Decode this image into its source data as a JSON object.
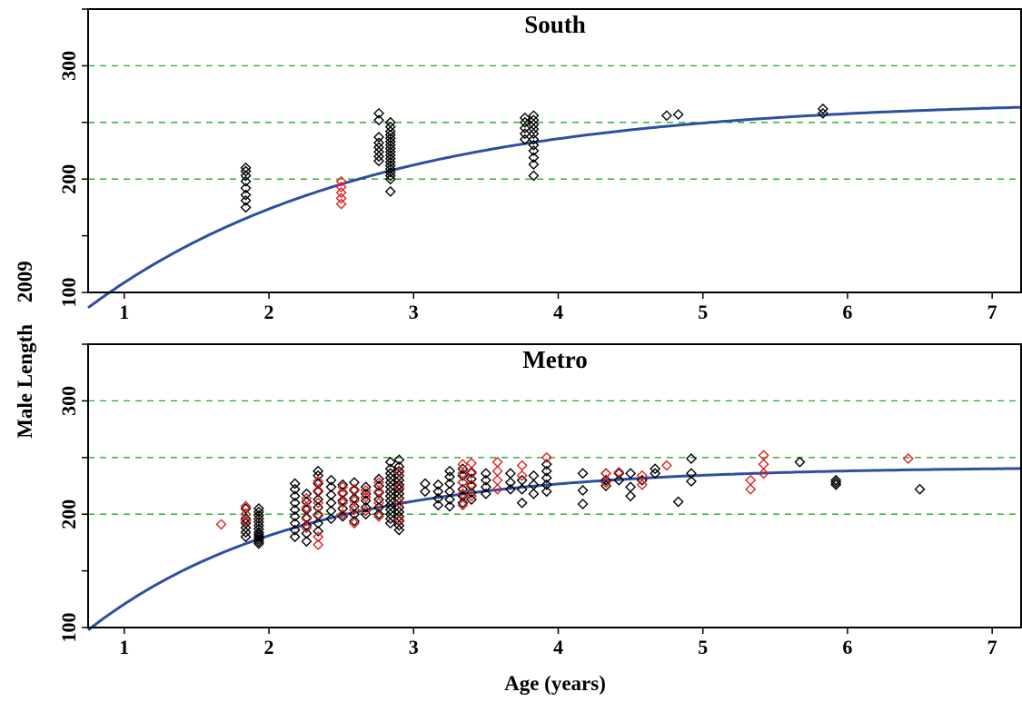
{
  "chart_data": {
    "type": "scatter",
    "xlabel": "Age (years)",
    "ylabel": "Male Length",
    "ylabel_year": "2009",
    "xlim": [
      0.75,
      7.2
    ],
    "ylim": [
      100,
      350
    ],
    "xticks": [
      1,
      2,
      3,
      4,
      5,
      6,
      7
    ],
    "yticks": [
      100,
      200,
      300
    ],
    "grid_y": [
      200,
      250,
      300
    ],
    "colors": {
      "fit": "#2e4ea0",
      "grid": "#22aa22",
      "obs_black": "#000000",
      "obs_red": "#dd2222",
      "axis": "#000000"
    },
    "panels": [
      {
        "title": "South",
        "fit_curve": {
          "model": "von Bertalanffy",
          "Linf": 270,
          "K": 0.515,
          "t0": 0
        },
        "clusters": [
          {
            "age": 1.84,
            "color": "black",
            "values": [
              175,
              181,
              186,
              192,
              198,
              203,
              207,
              210
            ]
          },
          {
            "age": 2.5,
            "color": "red",
            "values": [
              178,
              183,
              188,
              193,
              198
            ]
          },
          {
            "age": 2.76,
            "color": "black",
            "values": [
              216,
              220,
              224,
              228,
              232,
              237,
              252,
              258
            ]
          },
          {
            "age": 2.84,
            "color": "black",
            "values": [
              189,
              200,
              203,
              206,
              209,
              212,
              215,
              218,
              221,
              224,
              227,
              230,
              233,
              236,
              239,
              242,
              246,
              250
            ]
          },
          {
            "age": 3.77,
            "color": "black",
            "values": [
              235,
              240,
              245,
              250,
              254
            ]
          },
          {
            "age": 3.83,
            "color": "black",
            "values": [
              203,
              213,
              219,
              225,
              230,
              235,
              240,
              244,
              248,
              252,
              256
            ]
          },
          {
            "age": 4.75,
            "color": "black",
            "values": [
              256
            ]
          },
          {
            "age": 4.83,
            "color": "black",
            "values": [
              257
            ]
          },
          {
            "age": 5.83,
            "color": "black",
            "values": [
              258,
              262
            ]
          }
        ]
      },
      {
        "title": "Metro",
        "fit_curve": {
          "model": "von Bertalanffy",
          "Linf": 242,
          "K": 0.69,
          "t0": 0
        },
        "clusters": [
          {
            "age": 1.67,
            "color": "red",
            "values": [
              191
            ]
          },
          {
            "age": 1.84,
            "color": "black",
            "values": [
              180,
              184,
              188,
              192,
              196,
              200,
              205
            ]
          },
          {
            "age": 1.84,
            "color": "red",
            "values": [
              194,
              200,
              207
            ]
          },
          {
            "age": 1.93,
            "color": "black",
            "values": [
              174,
              176,
              178,
              180,
              182,
              184,
              187,
              190,
              193,
              196,
              199,
              202,
              205
            ]
          },
          {
            "age": 2.18,
            "color": "black",
            "values": [
              180,
              186,
              192,
              198,
              204,
              210,
              216,
              222,
              227
            ]
          },
          {
            "age": 2.26,
            "color": "black",
            "values": [
              176,
              183,
              190,
              197,
              204,
              211,
              218
            ]
          },
          {
            "age": 2.26,
            "color": "red",
            "values": [
              188,
              196,
              206,
              214
            ]
          },
          {
            "age": 2.34,
            "color": "black",
            "values": [
              185,
              192,
              199,
              206,
              213,
              220,
              227,
              234,
              238
            ]
          },
          {
            "age": 2.34,
            "color": "red",
            "values": [
              173,
              180,
              200,
              210,
              221,
              229
            ]
          },
          {
            "age": 2.43,
            "color": "black",
            "values": [
              196,
              203,
              210,
              217,
              224,
              230
            ]
          },
          {
            "age": 2.51,
            "color": "black",
            "values": [
              198,
              205,
              212,
              219,
              226
            ]
          },
          {
            "age": 2.51,
            "color": "red",
            "values": [
              200,
              210,
              218,
              224
            ]
          },
          {
            "age": 2.59,
            "color": "black",
            "values": [
              194,
              200,
              207,
              214,
              221,
              228
            ]
          },
          {
            "age": 2.59,
            "color": "red",
            "values": [
              192,
              204,
              212,
              222
            ]
          },
          {
            "age": 2.67,
            "color": "black",
            "values": [
              200,
              206,
              212,
              218,
              224
            ]
          },
          {
            "age": 2.67,
            "color": "red",
            "values": [
              203,
              215,
              221
            ]
          },
          {
            "age": 2.76,
            "color": "black",
            "values": [
              200,
              206,
              213,
              219,
              225,
              231
            ]
          },
          {
            "age": 2.76,
            "color": "red",
            "values": [
              198,
              210,
              220,
              228
            ]
          },
          {
            "age": 2.84,
            "color": "black",
            "values": [
              192,
              196,
              200,
              204,
              208,
              212,
              216,
              220,
              224,
              228,
              232,
              236,
              240,
              246
            ]
          },
          {
            "age": 2.9,
            "color": "black",
            "values": [
              186,
              190,
              194,
              198,
              202,
              206,
              210,
              214,
              218,
              222,
              226,
              230,
              234,
              238,
              242,
              248
            ]
          },
          {
            "age": 2.9,
            "color": "red",
            "values": [
              195,
              210,
              224,
              237
            ]
          },
          {
            "age": 3.08,
            "color": "black",
            "values": [
              220,
              227
            ]
          },
          {
            "age": 3.17,
            "color": "black",
            "values": [
              208,
              214,
              220,
              226
            ]
          },
          {
            "age": 3.25,
            "color": "black",
            "values": [
              207,
              213,
              220,
              227,
              233,
              238
            ]
          },
          {
            "age": 3.34,
            "color": "black",
            "values": [
              210,
              216,
              222,
              228,
              234,
              240
            ]
          },
          {
            "age": 3.34,
            "color": "red",
            "values": [
              208,
              218,
              228,
              236,
              244
            ]
          },
          {
            "age": 3.4,
            "color": "black",
            "values": [
              213,
              219,
              225,
              231,
              237
            ]
          },
          {
            "age": 3.4,
            "color": "red",
            "values": [
              216,
              226,
              236,
              245
            ]
          },
          {
            "age": 3.5,
            "color": "black",
            "values": [
              218,
              224,
              230,
              236
            ]
          },
          {
            "age": 3.58,
            "color": "red",
            "values": [
              222,
              230,
              238,
              246
            ]
          },
          {
            "age": 3.67,
            "color": "black",
            "values": [
              222,
              228,
              236
            ]
          },
          {
            "age": 3.75,
            "color": "black",
            "values": [
              210,
              222,
              230
            ]
          },
          {
            "age": 3.75,
            "color": "red",
            "values": [
              234,
              243
            ]
          },
          {
            "age": 3.83,
            "color": "black",
            "values": [
              218,
              226,
              234
            ]
          },
          {
            "age": 3.92,
            "color": "black",
            "values": [
              220,
              226,
              232,
              238,
              244
            ]
          },
          {
            "age": 3.92,
            "color": "red",
            "values": [
              250
            ]
          },
          {
            "age": 4.17,
            "color": "black",
            "values": [
              209,
              221,
              236
            ]
          },
          {
            "age": 4.33,
            "color": "black",
            "values": [
              225,
              230,
              236
            ]
          },
          {
            "age": 4.33,
            "color": "red",
            "values": [
              228,
              236
            ]
          },
          {
            "age": 4.42,
            "color": "black",
            "values": [
              230,
              236
            ]
          },
          {
            "age": 4.42,
            "color": "red",
            "values": [
              237
            ]
          },
          {
            "age": 4.5,
            "color": "black",
            "values": [
              216,
              224,
              236
            ]
          },
          {
            "age": 4.58,
            "color": "black",
            "values": [
              230
            ]
          },
          {
            "age": 4.58,
            "color": "red",
            "values": [
              226,
              234
            ]
          },
          {
            "age": 4.67,
            "color": "black",
            "values": [
              236,
              240
            ]
          },
          {
            "age": 4.75,
            "color": "red",
            "values": [
              243
            ]
          },
          {
            "age": 4.83,
            "color": "black",
            "values": [
              211
            ]
          },
          {
            "age": 4.92,
            "color": "black",
            "values": [
              229,
              236,
              249
            ]
          },
          {
            "age": 5.33,
            "color": "red",
            "values": [
              222,
              230
            ]
          },
          {
            "age": 5.42,
            "color": "red",
            "values": [
              236,
              244,
              252
            ]
          },
          {
            "age": 5.67,
            "color": "black",
            "values": [
              246
            ]
          },
          {
            "age": 5.92,
            "color": "black",
            "values": [
              226,
              228,
              230
            ]
          },
          {
            "age": 6.42,
            "color": "red",
            "values": [
              249
            ]
          },
          {
            "age": 6.5,
            "color": "black",
            "values": [
              222
            ]
          }
        ]
      }
    ]
  }
}
